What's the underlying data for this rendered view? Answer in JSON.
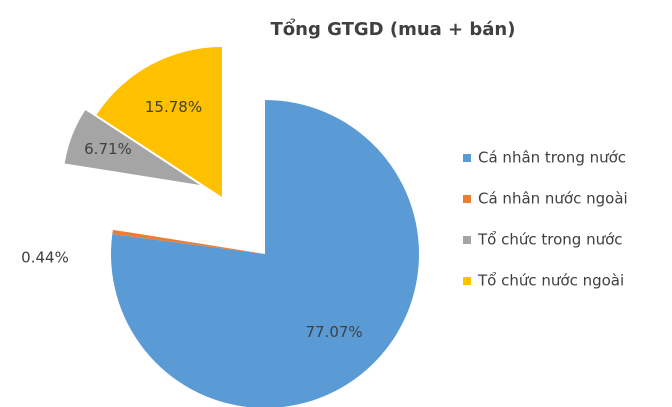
{
  "chart_data": {
    "type": "pie",
    "title": "Tổng GTGD (mua + bán)",
    "categories": [
      "Cá nhân trong nước",
      "Cá nhân nước ngoài",
      "Tổ chức trong nước",
      "Tổ chức nước ngoài"
    ],
    "values": [
      77.07,
      0.44,
      6.71,
      15.78
    ],
    "value_labels": [
      "77.07%",
      "0.44%",
      "6.71%",
      "15.78%"
    ],
    "colors": [
      "#5b9bd5",
      "#ed7d31",
      "#a5a5a5",
      "#ffc000"
    ],
    "legend": "right"
  }
}
